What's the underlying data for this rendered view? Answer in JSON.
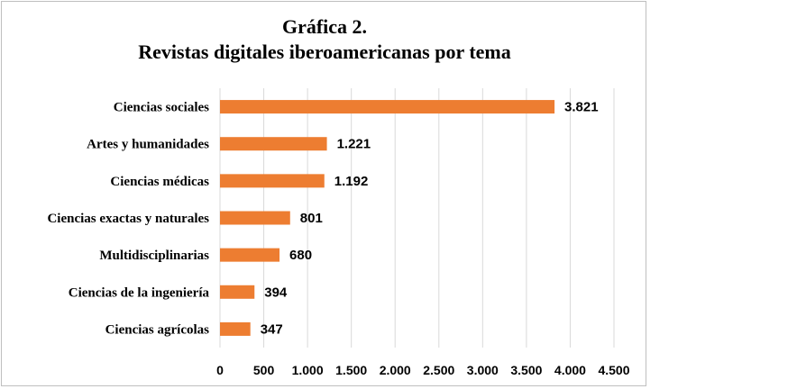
{
  "chart_data": {
    "type": "bar",
    "orientation": "horizontal",
    "title": [
      "Gráfica 2.",
      "Revistas digitales iberoamericanas por tema"
    ],
    "categories": [
      "Ciencias sociales",
      "Artes y humanidades",
      "Ciencias médicas",
      "Ciencias exactas y naturales",
      "Multidisciplinarias",
      "Ciencias de la ingeniería",
      "Ciencias agrícolas"
    ],
    "values": [
      3821,
      1221,
      1192,
      801,
      680,
      394,
      347
    ],
    "value_labels": [
      "3.821",
      "1.221",
      "1.192",
      "801",
      "680",
      "394",
      "347"
    ],
    "x_ticks": [
      0,
      500,
      1000,
      1500,
      2000,
      2500,
      3000,
      3500,
      4000,
      4500
    ],
    "x_tick_labels": [
      "0",
      "500",
      "1.000",
      "1.500",
      "2.000",
      "2.500",
      "3.000",
      "3.500",
      "4.000",
      "4.500"
    ],
    "xlim": [
      0,
      4500
    ],
    "grid": "vertical",
    "legend": "none",
    "colors": {
      "bar": "#ed7d31",
      "grid": "#d9d9d9"
    }
  }
}
